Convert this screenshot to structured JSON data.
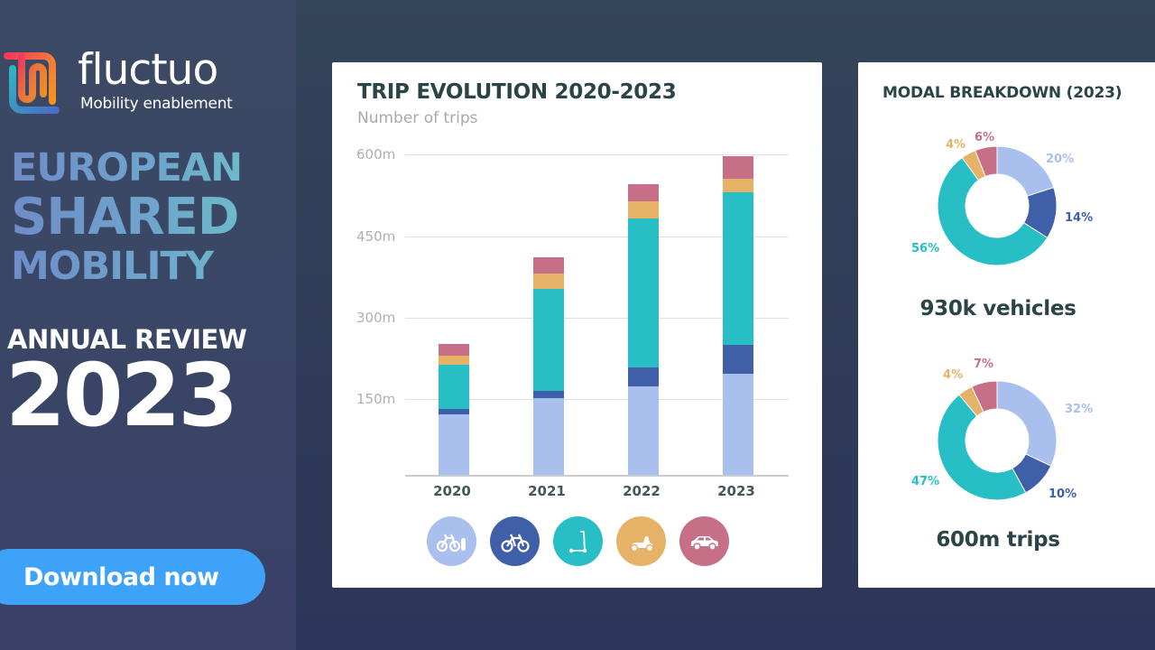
{
  "brand": {
    "name": "fluctuo",
    "tagline": "Mobility enablement"
  },
  "hero": {
    "line1": "EUROPEAN",
    "line2": "SHARED",
    "line3": "MOBILITY",
    "review_label": "ANNUAL REVIEW",
    "review_year": "2023",
    "cta_label": "Download now"
  },
  "colors": {
    "docked_bike": "#a9bfee",
    "free_floating_bike": "#3f5fa8",
    "e_scooter": "#27bfc5",
    "moped": "#e6b268",
    "car": "#c76f87",
    "cta": "#3da2f8",
    "title": "#2a4447"
  },
  "trip_card": {
    "title": "TRIP EVOLUTION 2020-2023",
    "subtitle": "Number of trips",
    "legend_icons": [
      "docked-bike-icon",
      "bike-icon",
      "e-scooter-icon",
      "moped-icon",
      "car-icon"
    ]
  },
  "modal_card": {
    "title": "MODAL BREAKDOWN (2023)",
    "vehicles_caption": "930k vehicles",
    "trips_caption": "600m trips"
  },
  "chart_data": [
    {
      "type": "bar",
      "stacked": true,
      "title": "TRIP EVOLUTION 2020-2023",
      "subtitle": "Number of trips",
      "xlabel": "",
      "ylabel": "Number of trips",
      "categories": [
        "2020",
        "2021",
        "2022",
        "2023"
      ],
      "yticks": [
        "150m",
        "300m",
        "450m",
        "600m"
      ],
      "ylim": [
        0,
        600
      ],
      "grid": true,
      "legend": "icons below chart",
      "series": [
        {
          "name": "Docked bike",
          "color": "#a9bfee",
          "values": [
            113,
            143,
            165,
            188
          ]
        },
        {
          "name": "Free-floating bike",
          "color": "#3f5fa8",
          "values": [
            10,
            13,
            35,
            53
          ]
        },
        {
          "name": "E-scooter",
          "color": "#27bfc5",
          "values": [
            82,
            190,
            275,
            282
          ]
        },
        {
          "name": "Moped",
          "color": "#e6b268",
          "values": [
            17,
            27,
            32,
            25
          ]
        },
        {
          "name": "Car",
          "color": "#c76f87",
          "values": [
            22,
            30,
            32,
            43
          ]
        }
      ]
    },
    {
      "type": "pie",
      "donut": true,
      "title": "MODAL BREAKDOWN (2023) - vehicles",
      "caption": "930k vehicles",
      "categories": [
        "Docked bike",
        "Free-floating bike",
        "E-scooter",
        "Moped",
        "Car"
      ],
      "values": [
        20,
        14,
        56,
        4,
        6
      ],
      "labels": [
        "20%",
        "14%",
        "56%",
        "4%",
        "6%"
      ]
    },
    {
      "type": "pie",
      "donut": true,
      "title": "MODAL BREAKDOWN (2023) - trips",
      "caption": "600m trips",
      "categories": [
        "Docked bike",
        "Free-floating bike",
        "E-scooter",
        "Moped",
        "Car"
      ],
      "values": [
        32,
        10,
        47,
        4,
        7
      ],
      "labels": [
        "32%",
        "10%",
        "47%",
        "4%",
        "7%"
      ]
    }
  ]
}
